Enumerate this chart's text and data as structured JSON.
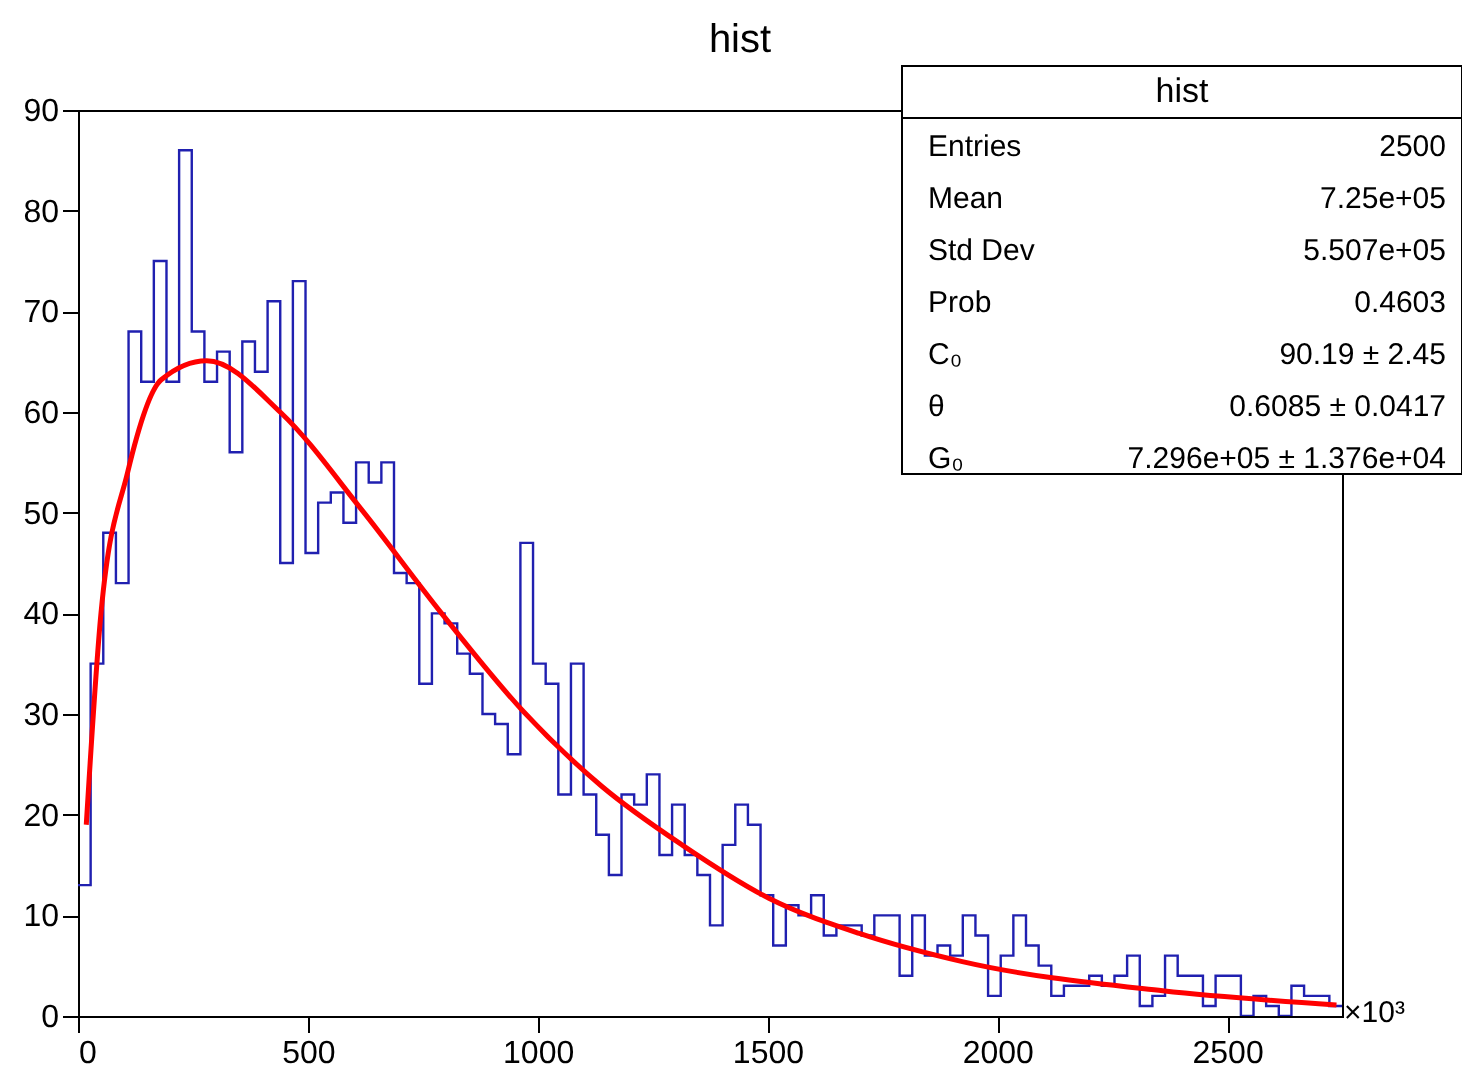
{
  "chart_data": {
    "type": "histogram",
    "title": "hist",
    "xlabel": "×10³",
    "bins": [
      0,
      27.5,
      55,
      82.5,
      110,
      137.5,
      165,
      192.5,
      220,
      247.5,
      275,
      302.5,
      330,
      357.5,
      385,
      412.5,
      440,
      467.5,
      495,
      522.5,
      550,
      577.5,
      605,
      632.5,
      660,
      687.5,
      715,
      742.5,
      770,
      797.5,
      825,
      852.5,
      880,
      907.5,
      935,
      962.5,
      990,
      1017.5,
      1045,
      1072.5,
      1100,
      1127.5,
      1155,
      1182.5,
      1210,
      1237.5,
      1265,
      1292.5,
      1320,
      1347.5,
      1375,
      1402.5,
      1430,
      1457.5,
      1485,
      1512.5,
      1540,
      1567.5,
      1595,
      1622.5,
      1650,
      1677.5,
      1705,
      1732.5,
      1760,
      1787.5,
      1815,
      1842.5,
      1870,
      1897.5,
      1925,
      1952.5,
      1980,
      2007.5,
      2035,
      2062.5,
      2090,
      2117.5,
      2145,
      2172.5,
      2200,
      2227.5,
      2255,
      2282.5,
      2310,
      2337.5,
      2365,
      2392.5,
      2420,
      2447.5,
      2475,
      2502.5,
      2530,
      2557.5,
      2585,
      2612.5,
      2640,
      2667.5,
      2695,
      2722.5,
      2750
    ],
    "series": [
      {
        "color": "#2020b0",
        "values": [
          13,
          35,
          48,
          43,
          68,
          63,
          75,
          63,
          86,
          68,
          63,
          66,
          56,
          67,
          64,
          71,
          45,
          73,
          46,
          51,
          52,
          49,
          55,
          53,
          55,
          44,
          43,
          33,
          40,
          39,
          36,
          34,
          30,
          29,
          26,
          47,
          35,
          33,
          22,
          35,
          22,
          18,
          14,
          22,
          21,
          24,
          16,
          21,
          16,
          14,
          9,
          17,
          21,
          19,
          12,
          7,
          11,
          10,
          12,
          8,
          9,
          9,
          8,
          10,
          10,
          4,
          10,
          6,
          7,
          6,
          10,
          8,
          2,
          6,
          10,
          7,
          5,
          2,
          3,
          3,
          4,
          3,
          4,
          6,
          1,
          2,
          6,
          4,
          4,
          1,
          4,
          4,
          0,
          2,
          1,
          0,
          3,
          2,
          2,
          1
        ]
      },
      {
        "type": "line",
        "color": "#ff0000",
        "x": [
          18,
          50,
          108,
          181,
          280,
          442,
          617,
          791,
          966,
          1140,
          1314,
          1503,
          1700,
          1924,
          2360,
          2738
        ],
        "values": [
          19,
          40,
          54,
          63.2,
          65.1,
          59.9,
          50.3,
          40,
          30.4,
          22.8,
          17,
          11.7,
          8.2,
          5.4,
          2.5,
          1.1
        ]
      }
    ],
    "xlim": [
      0,
      2750
    ],
    "xticks": [
      0,
      500,
      1000,
      1500,
      2000,
      2500
    ],
    "ylim": [
      0,
      90
    ],
    "yticks": [
      0,
      10,
      20,
      30,
      40,
      50,
      60,
      70,
      80,
      90
    ],
    "grid": false,
    "annotations": [
      "hist",
      "Entries",
      "2500",
      "Mean",
      "7.25e+05",
      "Std Dev",
      "5.507e+05",
      "Prob",
      "0.4603",
      "C₀",
      "90.19 ± 2.45",
      "θ",
      "0.6085 ± 0.0417",
      "G₀",
      "7.296e+05 ± 1.376e+04"
    ]
  }
}
